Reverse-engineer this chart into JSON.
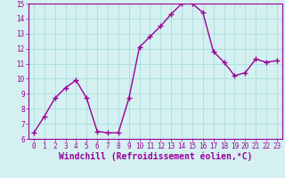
{
  "x": [
    0,
    1,
    2,
    3,
    4,
    5,
    6,
    7,
    8,
    9,
    10,
    11,
    12,
    13,
    14,
    15,
    16,
    17,
    18,
    19,
    20,
    21,
    22,
    23
  ],
  "y": [
    6.4,
    7.5,
    8.7,
    9.4,
    9.9,
    8.7,
    6.5,
    6.4,
    6.4,
    8.7,
    12.1,
    12.8,
    13.5,
    14.3,
    15.0,
    15.0,
    14.4,
    11.8,
    11.1,
    10.2,
    10.4,
    11.3,
    11.1,
    11.2
  ],
  "line_color": "#990099",
  "marker": "+",
  "marker_size": 4,
  "marker_lw": 1.0,
  "line_width": 1.0,
  "bg_color": "#d4f0f0",
  "grid_color": "#aadddd",
  "xlabel": "Windchill (Refroidissement éolien,°C)",
  "xlim": [
    -0.5,
    23.5
  ],
  "ylim": [
    6,
    15
  ],
  "yticks": [
    6,
    7,
    8,
    9,
    10,
    11,
    12,
    13,
    14,
    15
  ],
  "xticks": [
    0,
    1,
    2,
    3,
    4,
    5,
    6,
    7,
    8,
    9,
    10,
    11,
    12,
    13,
    14,
    15,
    16,
    17,
    18,
    19,
    20,
    21,
    22,
    23
  ],
  "tick_fontsize": 5.5,
  "xlabel_fontsize": 7.0,
  "label_color": "#990099"
}
